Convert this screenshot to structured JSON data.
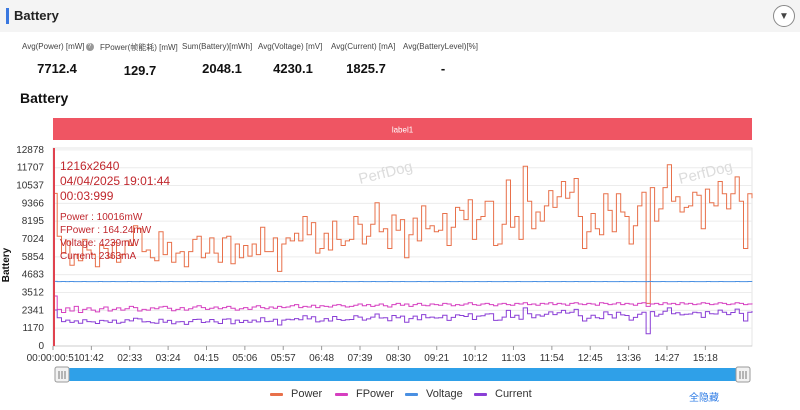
{
  "section": {
    "title": "Battery"
  },
  "stats": [
    {
      "label": "Avg(Power) [mW]",
      "value": "7712.4",
      "info": true
    },
    {
      "label": "FPower(帧能耗) [mW]",
      "value": "129.7"
    },
    {
      "label": "Sum(Battery)[mWh]",
      "value": "2048.1"
    },
    {
      "label": "Avg(Voltage) [mV]",
      "value": "4230.1"
    },
    {
      "label": "Avg(Current) [mA]",
      "value": "1825.7"
    },
    {
      "label": "Avg(BatteryLevel)[%]",
      "value": "-"
    }
  ],
  "chart_title": "Battery",
  "hide_all": "全隐藏",
  "info_icon_text": "?",
  "chart_data": {
    "type": "line",
    "ylabel": "Battery",
    "yticks": [
      0,
      1170,
      2341,
      3512,
      4683,
      5854,
      7024,
      8195,
      9366,
      10537,
      11707,
      12878
    ],
    "ylim": [
      0,
      13000
    ],
    "xlim": [
      51,
      980
    ],
    "xticks": [
      {
        "t": 51,
        "label": "00:00:00:51"
      },
      {
        "t": 102,
        "label": "01:42"
      },
      {
        "t": 153,
        "label": "02:33"
      },
      {
        "t": 204,
        "label": "03:24"
      },
      {
        "t": 255,
        "label": "04:15"
      },
      {
        "t": 306,
        "label": "05:06"
      },
      {
        "t": 357,
        "label": "05:57"
      },
      {
        "t": 408,
        "label": "06:48"
      },
      {
        "t": 459,
        "label": "07:39"
      },
      {
        "t": 510,
        "label": "08:30"
      },
      {
        "t": 561,
        "label": "09:21"
      },
      {
        "t": 612,
        "label": "10:12"
      },
      {
        "t": 663,
        "label": "11:03"
      },
      {
        "t": 714,
        "label": "11:54"
      },
      {
        "t": 765,
        "label": "12:45"
      },
      {
        "t": 816,
        "label": "13:36"
      },
      {
        "t": 867,
        "label": "14:27"
      },
      {
        "t": 918,
        "label": "15:18"
      }
    ],
    "band_label": "label1",
    "watermark": "PerfDog",
    "cursor_t": 51,
    "tooltip": {
      "lines": [
        "1216x2640",
        "04/04/2025 19:01:44",
        "00:03:999"
      ],
      "values": [
        "Power   : 10016mW",
        "FPower : 164.24mW",
        "Voltage: 4239mW",
        "Current: 2363mA"
      ]
    },
    "series": [
      {
        "name": "Power",
        "color": "#e8704a",
        "scale": 1,
        "values": [
          10016,
          7200,
          6100,
          6900,
          5300,
          6000,
          5600,
          7000,
          6300,
          6000,
          5200,
          6600,
          6400,
          5800,
          6800,
          5500,
          6000,
          6900,
          6600,
          7900,
          7700,
          6200,
          6300,
          5800,
          5600,
          7500,
          6000,
          6800,
          5500,
          6100,
          6200,
          5200,
          6200,
          7000,
          7200,
          5800,
          6100,
          7100,
          6100,
          5500,
          7100,
          7200,
          5400,
          6700,
          5800,
          6600,
          5900,
          6700,
          6000,
          7800,
          6200,
          6200,
          7100,
          4900,
          6700,
          7100,
          6900,
          7400,
          6900,
          8500,
          7300,
          8100,
          6100,
          6400,
          7400,
          6300,
          8200,
          7000,
          6600,
          6900,
          7000,
          8500,
          8000,
          6700,
          7200,
          8000,
          9400,
          7500,
          7700,
          6400,
          8600,
          7600,
          8300,
          5800,
          7300,
          8400,
          6900,
          9200,
          7700,
          7900,
          7500,
          7600,
          8700,
          6600,
          7800,
          9100,
          8900,
          8300,
          9600,
          7000,
          8300,
          8500,
          9500,
          9500,
          6600,
          6700,
          8000,
          10900,
          7800,
          8500,
          7000,
          11800,
          9500,
          7700,
          8800,
          8200,
          9200,
          10200,
          9100,
          9800,
          10800,
          9700,
          10100,
          11000,
          8500,
          6400,
          7500,
          8700,
          7700,
          7300,
          10000,
          8900,
          7500,
          10000,
          8800,
          8500,
          6700,
          7900,
          9200,
          10100,
          2800,
          10400,
          8200,
          9000,
          10400,
          11900,
          9500,
          9800,
          8800,
          9100,
          9200,
          10100,
          9900,
          7700,
          10300,
          9400,
          9200,
          10800,
          10000,
          9000,
          10000,
          11100,
          9500,
          6400,
          10000,
          9700
        ]
      },
      {
        "name": "FPower",
        "color": "#d63fc0",
        "scale": 20,
        "values": [
          164,
          120,
          110,
          125,
          115,
          130,
          110,
          120,
          125,
          118,
          112,
          122,
          128,
          115,
          120,
          125,
          118,
          122,
          130,
          126,
          115,
          120,
          118,
          125,
          122,
          128,
          130,
          124,
          116,
          120,
          126,
          118,
          122,
          128,
          132,
          126,
          120,
          124,
          128,
          122,
          126,
          130,
          124,
          118,
          122,
          126,
          120,
          128,
          132,
          126,
          122,
          128,
          124,
          130,
          126,
          128,
          132,
          136,
          126,
          130,
          128,
          134,
          126,
          132,
          130,
          128,
          134,
          136,
          132,
          128,
          130,
          134,
          138,
          132,
          136,
          130,
          134,
          138,
          132,
          128,
          136,
          140,
          134,
          138,
          130,
          136,
          140,
          134,
          132,
          138,
          136,
          134,
          140,
          138,
          132,
          136,
          134,
          138,
          142,
          136,
          134,
          138,
          140,
          136,
          132,
          138,
          140,
          136,
          134,
          140,
          138,
          142,
          136,
          138,
          134,
          140,
          138,
          142,
          136,
          140,
          138,
          134,
          140,
          142,
          138,
          136,
          140,
          138,
          134,
          142,
          140,
          136,
          138,
          142,
          136,
          140,
          138,
          134,
          140,
          142,
          130,
          138,
          140,
          136,
          142,
          138,
          140,
          136,
          142,
          138,
          140,
          136,
          138,
          142,
          140,
          136,
          138,
          142,
          140,
          136,
          138,
          142,
          140,
          136,
          138,
          140
        ]
      },
      {
        "name": "Voltage",
        "color": "#4a90e2",
        "scale": 1,
        "values": [
          4239,
          4230,
          4235,
          4228,
          4232,
          4230,
          4226,
          4233,
          4229,
          4231,
          4227,
          4234,
          4230,
          4228,
          4232,
          4229,
          4231,
          4226,
          4233,
          4230,
          4228,
          4232,
          4229,
          4231,
          4227,
          4234,
          4230,
          4228,
          4232,
          4229,
          4231,
          4226,
          4233,
          4230,
          4228,
          4232,
          4229,
          4231,
          4227,
          4234,
          4230,
          4228,
          4232,
          4229,
          4231,
          4226,
          4233,
          4230,
          4228,
          4232,
          4229,
          4231,
          4227,
          4234,
          4230,
          4228,
          4232,
          4229,
          4231,
          4226,
          4233,
          4230,
          4228,
          4232,
          4229,
          4231,
          4227,
          4234,
          4230,
          4228,
          4232,
          4229,
          4231,
          4226,
          4233,
          4230,
          4228,
          4232,
          4229,
          4231,
          4227,
          4234,
          4230,
          4228,
          4232,
          4229,
          4231,
          4226,
          4233,
          4230,
          4228,
          4232,
          4229,
          4231,
          4227,
          4234,
          4230,
          4228,
          4232,
          4229,
          4231,
          4226,
          4233,
          4230,
          4228,
          4232,
          4229,
          4231,
          4227,
          4234,
          4230,
          4228,
          4232,
          4229,
          4231,
          4226,
          4233,
          4230,
          4228,
          4232,
          4229,
          4231,
          4227,
          4234,
          4230,
          4228,
          4232,
          4229,
          4231,
          4226,
          4233,
          4230,
          4228,
          4232,
          4229,
          4231,
          4227,
          4234,
          4230,
          4228,
          4232,
          4229,
          4231,
          4226,
          4233,
          4230,
          4228,
          4232,
          4229,
          4231,
          4227,
          4234,
          4230,
          4228,
          4232,
          4229,
          4231,
          4226,
          4233,
          4230,
          4228,
          4232,
          4229,
          4231,
          4227,
          4234,
          4230,
          4228,
          4232,
          4229
        ]
      },
      {
        "name": "Current",
        "color": "#8a3fd6",
        "scale": 1,
        "values": [
          2363,
          1850,
          1600,
          1700,
          1550,
          1650,
          1500,
          1720,
          1600,
          1580,
          1480,
          1680,
          1650,
          1550,
          1700,
          1500,
          1560,
          1720,
          1650,
          1820,
          1780,
          1580,
          1600,
          1520,
          1500,
          1760,
          1560,
          1680,
          1460,
          1580,
          1600,
          1420,
          1600,
          1740,
          1760,
          1540,
          1580,
          1740,
          1580,
          1480,
          1760,
          1780,
          1460,
          1700,
          1540,
          1680,
          1560,
          1700,
          1580,
          1860,
          1600,
          1620,
          1760,
          1380,
          1700,
          1760,
          1720,
          1800,
          1720,
          1980,
          1780,
          1920,
          1580,
          1640,
          1800,
          1640,
          1940,
          1740,
          1680,
          1720,
          1740,
          1980,
          1900,
          1700,
          1780,
          1900,
          2100,
          1840,
          1860,
          1660,
          2000,
          1860,
          1960,
          1560,
          1800,
          1960,
          1720,
          2060,
          1860,
          1900,
          1840,
          1860,
          2020,
          1680,
          1880,
          2040,
          2000,
          1940,
          2120,
          1740,
          1960,
          1980,
          2100,
          2120,
          1680,
          1700,
          1900,
          2340,
          1880,
          2020,
          1760,
          2500,
          2120,
          1860,
          2040,
          1960,
          2080,
          2240,
          2060,
          2180,
          2340,
          2160,
          2220,
          2400,
          1980,
          1640,
          1820,
          2020,
          1860,
          1800,
          2240,
          2060,
          1840,
          2220,
          2040,
          2000,
          1700,
          1880,
          2080,
          2220,
          800,
          2260,
          1960,
          2080,
          2280,
          2500,
          2120,
          2180,
          2040,
          2080,
          2100,
          2220,
          2180,
          1880,
          2260,
          2120,
          2100,
          2360,
          2220,
          2060,
          2200,
          2420,
          2140,
          1640,
          2220,
          2300
        ]
      }
    ]
  }
}
